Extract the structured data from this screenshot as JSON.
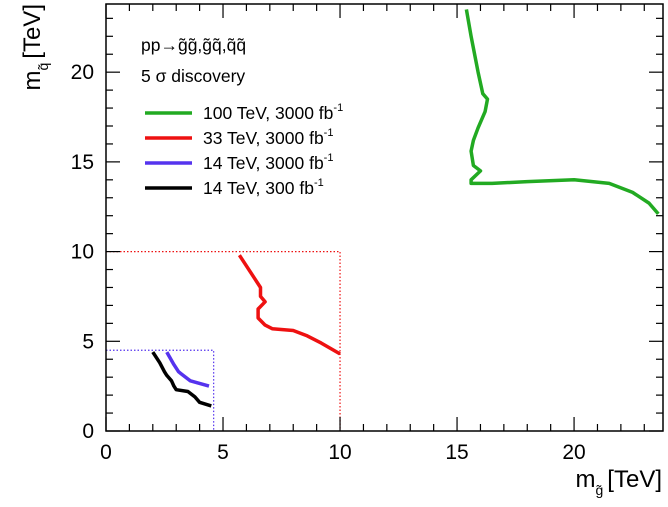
{
  "chart_data": {
    "type": "line",
    "title": "",
    "xlabel": {
      "symbol": "m",
      "subscript": "g̃",
      "unit": "[TeV]"
    },
    "ylabel": {
      "symbol": "m",
      "subscript": "q̃",
      "unit": "[TeV]"
    },
    "xlim": [
      0,
      23.8
    ],
    "ylim": [
      0,
      23.8
    ],
    "xticks": [
      0,
      5,
      10,
      15,
      20
    ],
    "yticks": [
      0,
      5,
      10,
      15,
      20
    ],
    "grid": false,
    "legend_position": "top-left",
    "annotations": {
      "process_lhs": "pp",
      "process_arrow": "→",
      "process_rhs": "g̃g̃,g̃q̃,q̃q̃",
      "discovery": "5 σ discovery"
    },
    "series": [
      {
        "name": "100 TeV, 3000 fb",
        "name_sup": "-1",
        "color": "#22aa22",
        "points": [
          [
            15.4,
            23.5
          ],
          [
            15.6,
            22.0
          ],
          [
            15.9,
            20.0
          ],
          [
            16.1,
            18.8
          ],
          [
            16.3,
            18.5
          ],
          [
            16.2,
            17.8
          ],
          [
            15.9,
            16.9
          ],
          [
            15.7,
            16.2
          ],
          [
            15.6,
            15.6
          ],
          [
            15.7,
            14.8
          ],
          [
            16.0,
            14.5
          ],
          [
            15.6,
            14.0
          ],
          [
            15.6,
            13.8
          ],
          [
            16.5,
            13.8
          ],
          [
            18.0,
            13.9
          ],
          [
            20.0,
            14.0
          ],
          [
            21.5,
            13.8
          ],
          [
            22.5,
            13.3
          ],
          [
            23.2,
            12.7
          ],
          [
            23.6,
            12.1
          ]
        ]
      },
      {
        "name": "33 TeV, 3000 fb",
        "name_sup": "-1",
        "color": "#ee1111",
        "points": [
          [
            5.7,
            9.8
          ],
          [
            6.2,
            8.8
          ],
          [
            6.6,
            8.0
          ],
          [
            6.6,
            7.5
          ],
          [
            6.8,
            7.2
          ],
          [
            6.5,
            6.8
          ],
          [
            6.5,
            6.3
          ],
          [
            6.8,
            5.9
          ],
          [
            7.1,
            5.7
          ],
          [
            8.0,
            5.6
          ],
          [
            8.6,
            5.3
          ],
          [
            9.2,
            4.9
          ],
          [
            10.0,
            4.3
          ]
        ]
      },
      {
        "name": "14 TeV, 3000 fb",
        "name_sup": "-1",
        "color": "#5533ee",
        "points": [
          [
            2.6,
            4.4
          ],
          [
            2.9,
            3.7
          ],
          [
            3.1,
            3.3
          ],
          [
            3.2,
            3.2
          ],
          [
            3.5,
            2.9
          ],
          [
            3.6,
            2.8
          ],
          [
            4.4,
            2.5
          ]
        ]
      },
      {
        "name": "14 TeV, 300 fb",
        "name_sup": "-1",
        "color": "#000000",
        "points": [
          [
            2.0,
            4.4
          ],
          [
            2.3,
            3.8
          ],
          [
            2.5,
            3.3
          ],
          [
            2.6,
            3.1
          ],
          [
            2.8,
            2.8
          ],
          [
            2.9,
            2.5
          ],
          [
            3.0,
            2.3
          ],
          [
            3.5,
            2.2
          ],
          [
            3.8,
            1.9
          ],
          [
            4.0,
            1.6
          ],
          [
            4.5,
            1.4
          ]
        ]
      }
    ],
    "dotted_boxes": [
      {
        "color": "#ee1111",
        "x_end": 10.0,
        "y_end": 10.0
      },
      {
        "color": "#5533ee",
        "x_end": 4.6,
        "y_end": 4.5
      }
    ]
  }
}
